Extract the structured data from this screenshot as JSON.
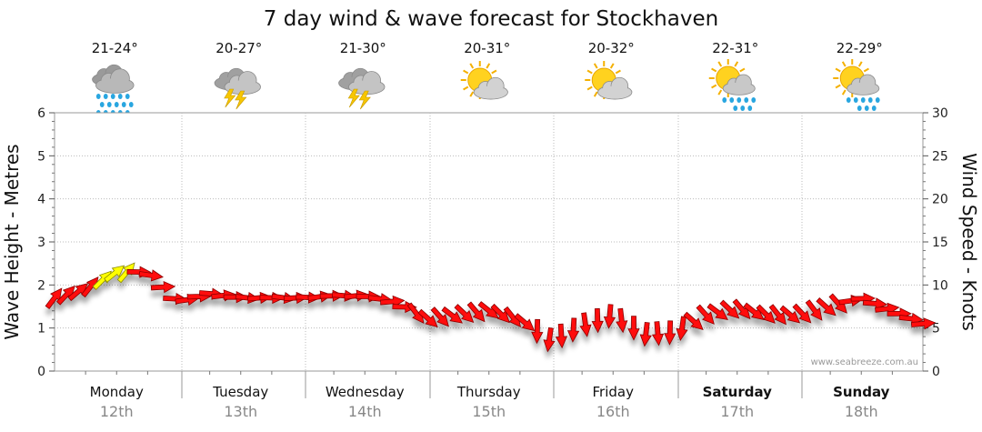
{
  "chart_data": {
    "type": "line",
    "title": "7 day wind & wave forecast for Stockhaven",
    "ylabel_left": "Wave Height - Metres",
    "ylabel_right": "Wind Speed - Knots",
    "ylim_left": [
      0,
      6
    ],
    "ylim_right": [
      0,
      30
    ],
    "yticks_left": [
      "0",
      "1",
      "2",
      "3",
      "4",
      "5",
      "6"
    ],
    "yticks_right": [
      "0",
      "5",
      "10",
      "15",
      "20",
      "25",
      "30"
    ],
    "grid": true,
    "watermark": "www.seabreeze.com.au",
    "days": [
      {
        "name": "Monday",
        "date": "12th",
        "temp": "21-24°",
        "icon": "rain-cloud-icon",
        "bold": false
      },
      {
        "name": "Tuesday",
        "date": "13th",
        "temp": "20-27°",
        "icon": "thunderstorm-icon",
        "bold": false
      },
      {
        "name": "Wednesday",
        "date": "14th",
        "temp": "21-30°",
        "icon": "thunderstorm-icon",
        "bold": false
      },
      {
        "name": "Thursday",
        "date": "15th",
        "temp": "20-31°",
        "icon": "partly-sunny-icon",
        "bold": false
      },
      {
        "name": "Friday",
        "date": "16th",
        "temp": "20-32°",
        "icon": "partly-sunny-icon",
        "bold": false
      },
      {
        "name": "Saturday",
        "date": "17th",
        "temp": "22-31°",
        "icon": "sun-shower-icon",
        "bold": true
      },
      {
        "name": "Sunday",
        "date": "18th",
        "temp": "22-29°",
        "icon": "sun-shower-icon",
        "bold": true
      }
    ],
    "series": [
      {
        "x_days": [
          0.0,
          0.25,
          0.5,
          0.75,
          1.0,
          1.25,
          1.5,
          1.75,
          2.0,
          2.25,
          2.5,
          2.75,
          3.0,
          3.25,
          3.5,
          3.75,
          4.0,
          4.25,
          4.5,
          4.75,
          5.0,
          5.25,
          5.5,
          5.75,
          6.0,
          6.25,
          6.5,
          6.75,
          7.0
        ],
        "wave_height_m": [
          1.7,
          1.9,
          2.3,
          2.3,
          1.6,
          1.8,
          1.7,
          1.7,
          1.7,
          1.75,
          1.75,
          1.6,
          1.2,
          1.3,
          1.4,
          1.2,
          0.7,
          1.05,
          1.3,
          0.85,
          0.9,
          1.3,
          1.45,
          1.3,
          1.3,
          1.5,
          1.7,
          1.4,
          1.1
        ],
        "wind_direction": [
          "NE",
          "NE",
          "NE",
          "E",
          "E",
          "E",
          "E",
          "E",
          "E",
          "E",
          "E",
          "E",
          "SE",
          "SE",
          "SE",
          "SE",
          "S",
          "S",
          "S",
          "S",
          "S",
          "SE",
          "SE",
          "SE",
          "SE",
          "SE",
          "E",
          "E",
          "E"
        ],
        "wind_color": [
          "red",
          "red",
          "yellow",
          "red",
          "red",
          "red",
          "red",
          "red",
          "red",
          "red",
          "red",
          "red",
          "red",
          "red",
          "red",
          "red",
          "red",
          "red",
          "red",
          "red",
          "red",
          "red",
          "red",
          "red",
          "red",
          "red",
          "red",
          "red",
          "red"
        ]
      }
    ]
  }
}
